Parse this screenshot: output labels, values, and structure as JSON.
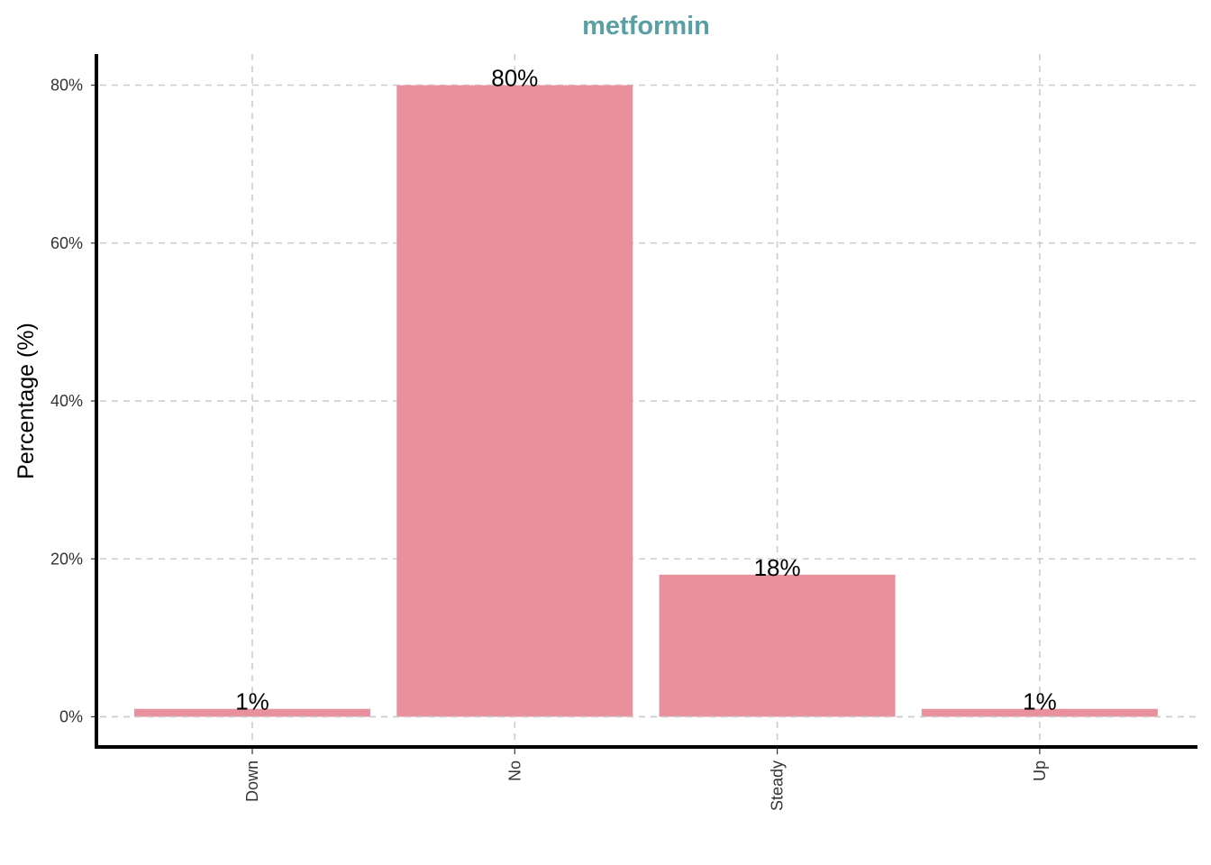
{
  "chart_data": {
    "type": "bar",
    "title": "metformin",
    "xlabel": "",
    "ylabel": "Percentage (%)",
    "categories": [
      "Down",
      "No",
      "Steady",
      "Up"
    ],
    "values": [
      1,
      80,
      18,
      1
    ],
    "data_labels": [
      "1%",
      "80%",
      "18%",
      "1%"
    ],
    "ylim": [
      0,
      84
    ],
    "yticks": [
      0,
      20,
      40,
      60,
      80
    ],
    "ytick_labels": [
      "0%",
      "20%",
      "40%",
      "60%",
      "80%"
    ],
    "grid": true,
    "legend": "none"
  },
  "colors": {
    "bar": "#e9909d",
    "title": "#5aa0a3",
    "grid": "#cccccc",
    "axis": "#000000"
  }
}
